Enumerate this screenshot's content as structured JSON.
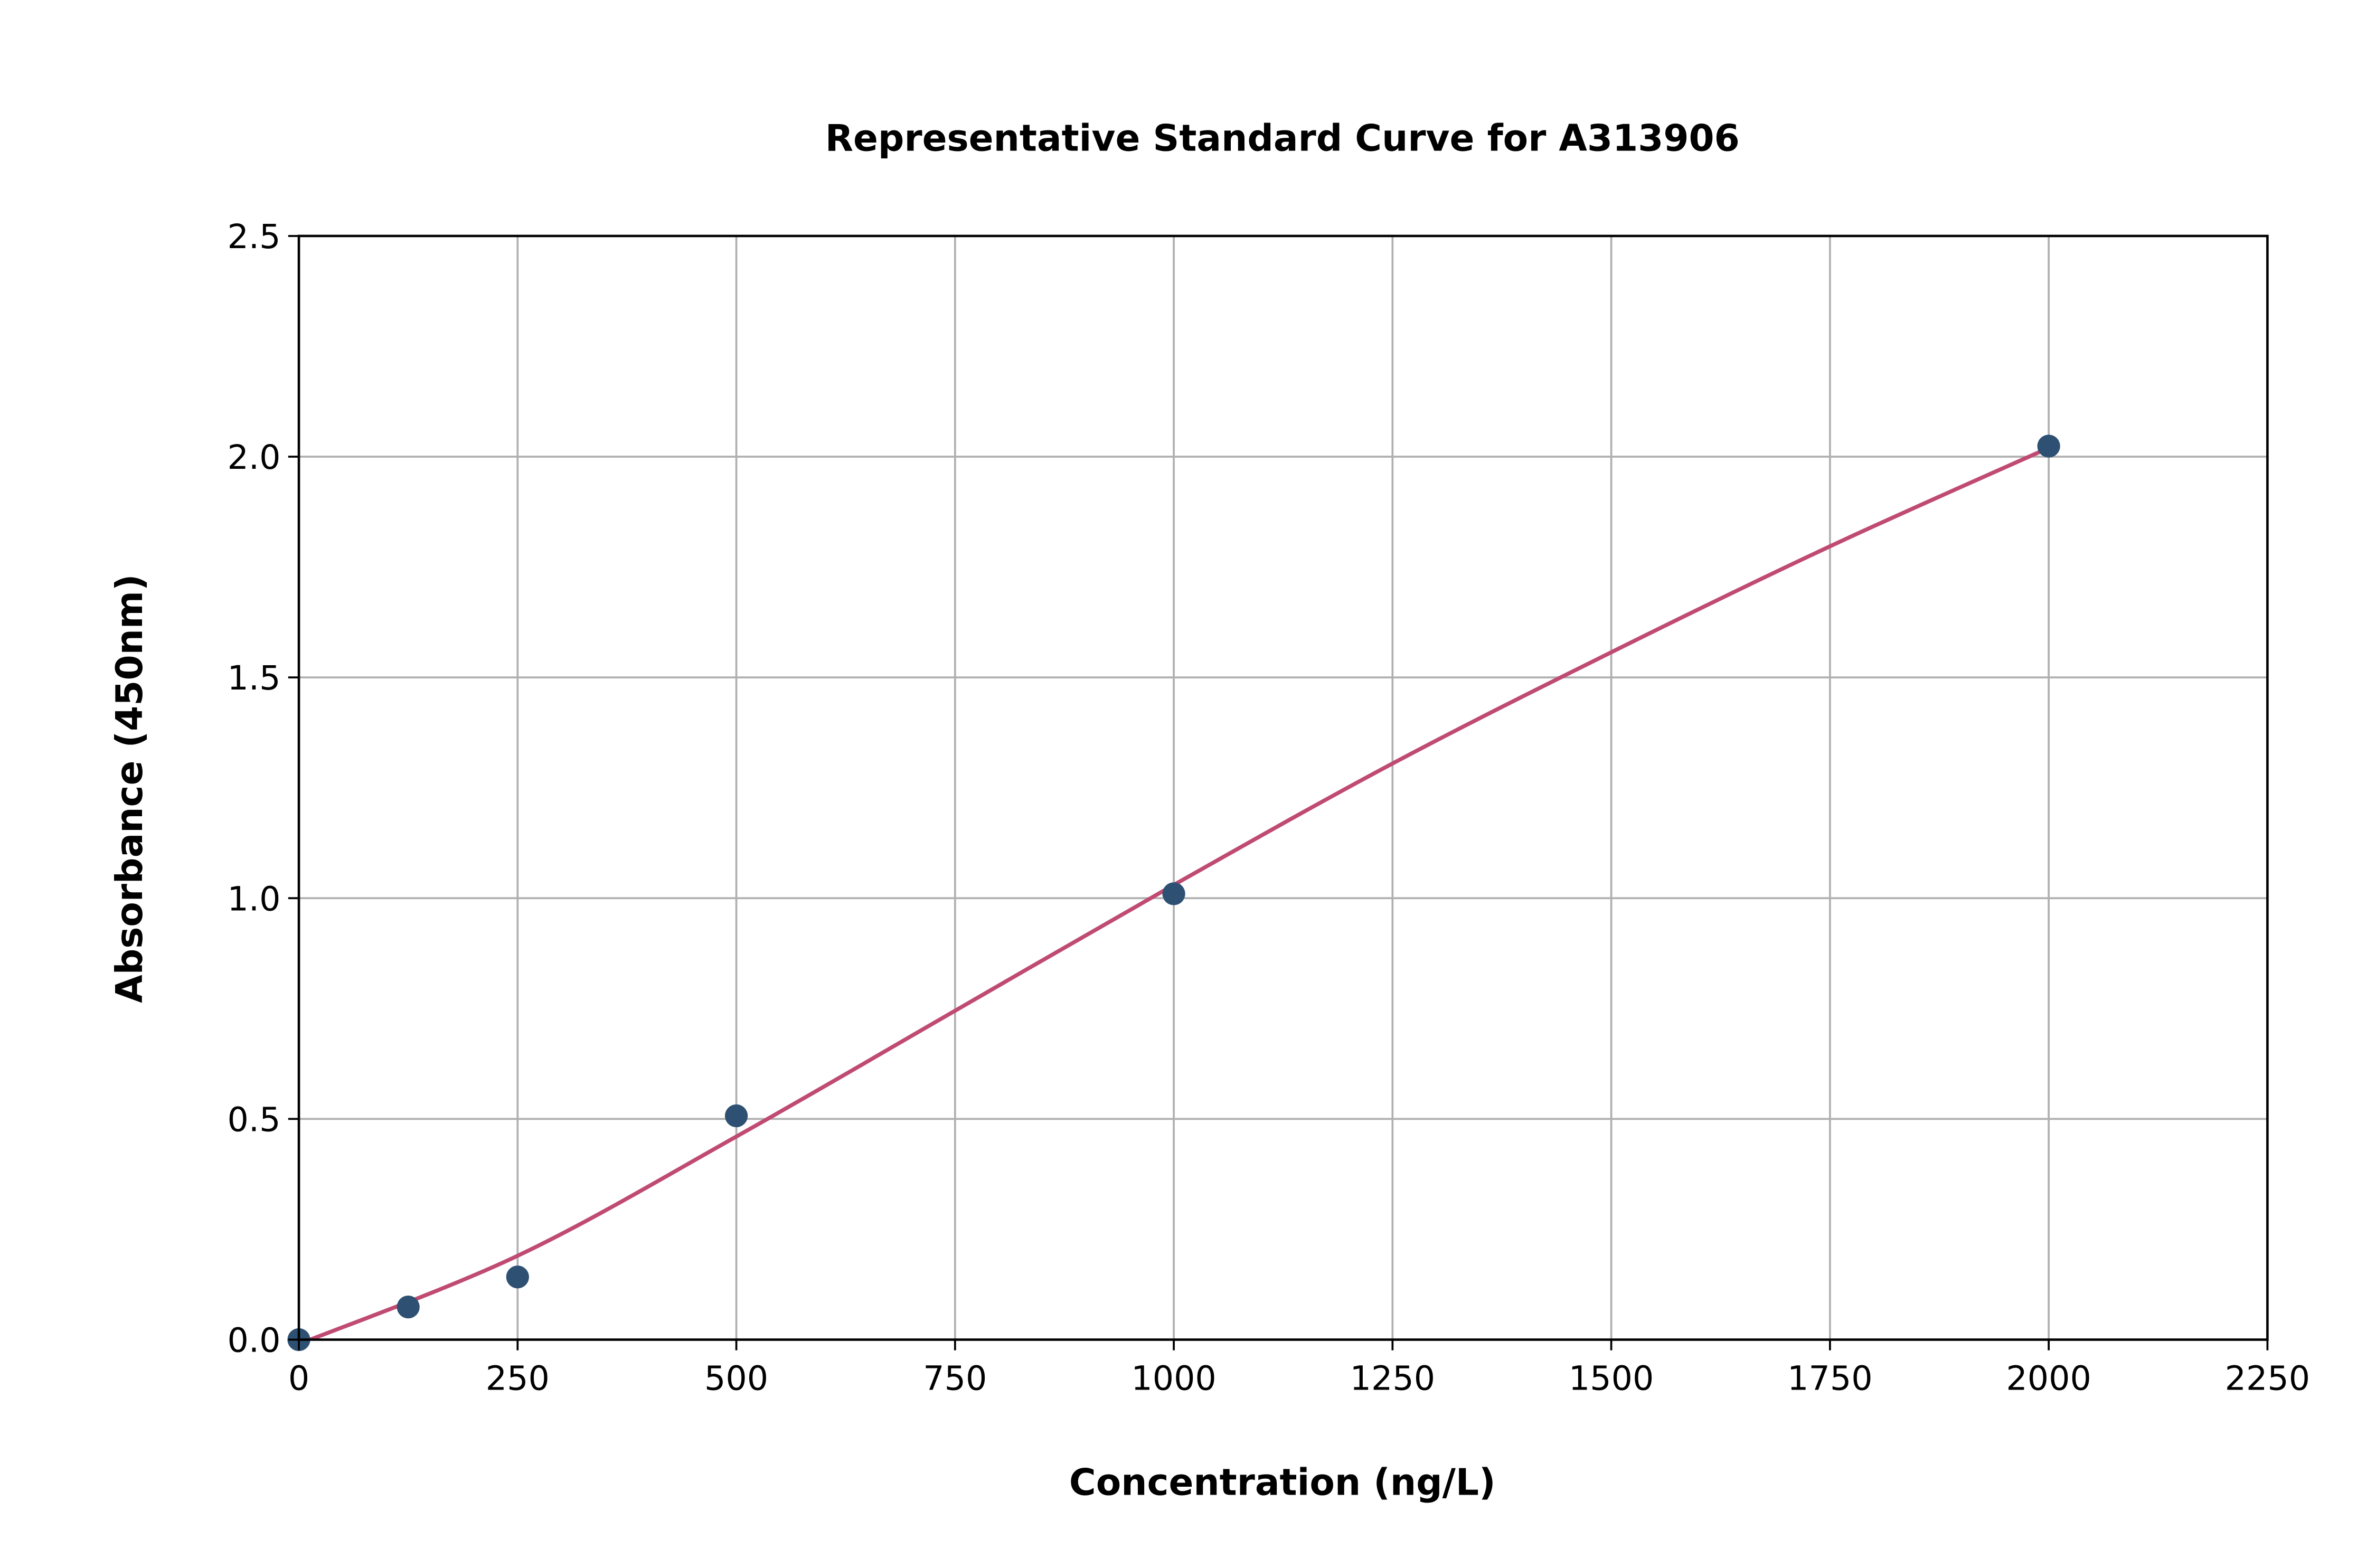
{
  "chart_data": {
    "type": "scatter",
    "title": "Representative Standard Curve for A313906",
    "xlabel": "Concentration (ng/L)",
    "ylabel": "Absorbance (450nm)",
    "xlim": [
      0,
      2250
    ],
    "ylim": [
      0,
      2.5
    ],
    "xticks": [
      "0",
      "250",
      "500",
      "750",
      "1000",
      "1250",
      "1500",
      "1750",
      "2000",
      "2250"
    ],
    "yticks": [
      "0.0",
      "0.5",
      "1.0",
      "1.5",
      "2.0",
      "2.5"
    ],
    "grid": true,
    "points": {
      "x": [
        0,
        125,
        250,
        500,
        1000,
        2000
      ],
      "y": [
        0.0,
        0.074,
        0.142,
        0.507,
        1.01,
        2.024
      ],
      "color": "#2d5073"
    },
    "fit_curve": {
      "x": [
        0,
        250,
        500,
        750,
        1000,
        1250,
        1500,
        1750,
        2000
      ],
      "y": [
        -0.01,
        0.19,
        0.46,
        0.745,
        1.03,
        1.305,
        1.557,
        1.797,
        2.02
      ],
      "color": "#c04b72"
    }
  }
}
